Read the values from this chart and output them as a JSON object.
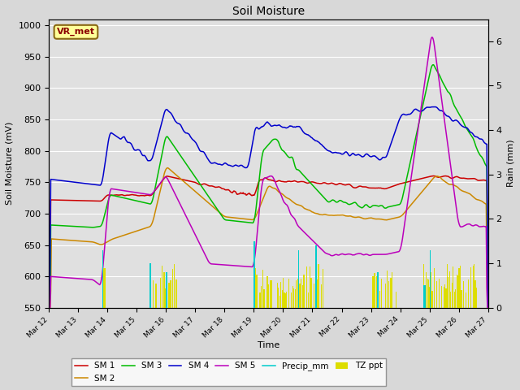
{
  "title": "Soil Moisture",
  "xlabel": "Time",
  "ylabel_left": "Soil Moisture (mV)",
  "ylabel_right": "Rain (mm)",
  "ylim_left": [
    550,
    1010
  ],
  "ylim_right": [
    0.0,
    6.5
  ],
  "background_color": "#d8d8d8",
  "plot_bg_color": "#e0e0e0",
  "grid_color": "#ffffff",
  "vr_met_label": "VR_met",
  "vr_met_bg": "#ffff99",
  "vr_met_text_color": "#8b0000",
  "vr_met_border_color": "#8b6914",
  "colors": {
    "SM 1": "#cc0000",
    "SM 2": "#cc8800",
    "SM 3": "#00bb00",
    "SM 4": "#0000cc",
    "SM 5": "#bb00bb",
    "Precip_mm": "#00cccc",
    "TZ ppt": "#dddd00"
  },
  "n_points": 720,
  "x_start": 12.0,
  "x_end": 27.0,
  "xtick_positions": [
    12,
    13,
    14,
    15,
    16,
    17,
    18,
    19,
    20,
    21,
    22,
    23,
    24,
    25,
    26,
    27
  ],
  "xtick_labels": [
    "Mar 12",
    "Mar 13",
    "Mar 14",
    "Mar 15",
    "Mar 16",
    "Mar 17",
    "Mar 18",
    "Mar 19",
    "Mar 20",
    "Mar 21",
    "Mar 22",
    "Mar 23",
    "Mar 24",
    "Mar 25",
    "Mar 26",
    "Mar 27"
  ]
}
